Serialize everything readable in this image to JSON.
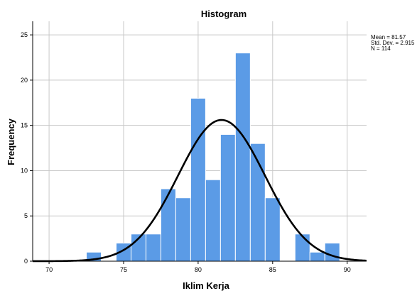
{
  "chart_data": {
    "type": "bar",
    "title": "Histogram",
    "xlabel": "Iklim Kerja",
    "ylabel": "Frequency",
    "xlim": [
      68.9,
      91.3
    ],
    "ylim": [
      0,
      26.5
    ],
    "xticks": [
      70,
      75,
      80,
      85,
      90
    ],
    "yticks": [
      0,
      5,
      10,
      15,
      20,
      25
    ],
    "grid": true,
    "bin_width": 1,
    "bars": [
      {
        "x0": 72.5,
        "x1": 73.5,
        "value": 1
      },
      {
        "x0": 74.5,
        "x1": 75.5,
        "value": 2
      },
      {
        "x0": 75.5,
        "x1": 76.5,
        "value": 3
      },
      {
        "x0": 76.5,
        "x1": 77.5,
        "value": 3
      },
      {
        "x0": 77.5,
        "x1": 78.5,
        "value": 8
      },
      {
        "x0": 78.5,
        "x1": 79.5,
        "value": 7
      },
      {
        "x0": 79.5,
        "x1": 80.5,
        "value": 18
      },
      {
        "x0": 80.5,
        "x1": 81.5,
        "value": 9
      },
      {
        "x0": 81.5,
        "x1": 82.5,
        "value": 14
      },
      {
        "x0": 82.5,
        "x1": 83.5,
        "value": 23
      },
      {
        "x0": 83.5,
        "x1": 84.5,
        "value": 13
      },
      {
        "x0": 84.5,
        "x1": 85.5,
        "value": 7
      },
      {
        "x0": 86.5,
        "x1": 87.5,
        "value": 3
      },
      {
        "x0": 87.5,
        "x1": 88.5,
        "value": 1
      },
      {
        "x0": 88.5,
        "x1": 89.5,
        "value": 2
      }
    ],
    "normal_curve": {
      "mean": 81.57,
      "std_dev": 2.915,
      "n": 114
    },
    "stats_lines": [
      "Mean = 81.57",
      "Std. Dev. = 2.915",
      "N = 114"
    ],
    "bar_color": "#5b9be6",
    "bar_edge_color": "#ffffff",
    "curve_color": "#000000",
    "grid_color": "#c8c8c8"
  }
}
